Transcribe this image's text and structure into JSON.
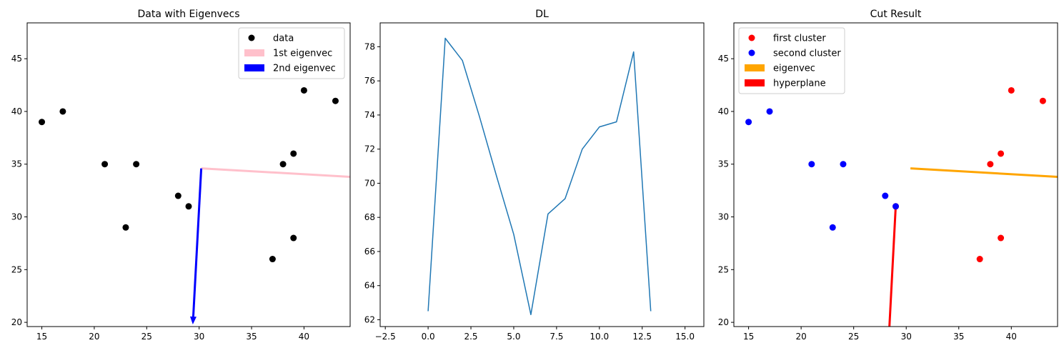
{
  "chart_data": [
    {
      "type": "scatter",
      "title": "Data with Eigenvecs",
      "xlabel": "",
      "ylabel": "",
      "xlim": [
        13.6,
        44.4
      ],
      "ylim": [
        19.6,
        48.4
      ],
      "xticks": [
        15,
        20,
        25,
        30,
        35,
        40
      ],
      "yticks": [
        20,
        25,
        30,
        35,
        40,
        45
      ],
      "grid": false,
      "legend_position": "top-right",
      "series": [
        {
          "name": "data",
          "kind": "points",
          "color": "#000000",
          "x": [
            15,
            17,
            21,
            24,
            23,
            28,
            29,
            37,
            38,
            39,
            39,
            40,
            43
          ],
          "y": [
            39,
            40,
            35,
            35,
            29,
            32,
            31,
            26,
            35,
            36,
            28,
            42,
            41
          ]
        },
        {
          "name": "1st eigenvec",
          "kind": "line",
          "color": "#ffc0cb",
          "x": [
            30.2,
            44.4
          ],
          "y": [
            34.6,
            33.8
          ]
        },
        {
          "name": "2nd eigenvec",
          "kind": "arrow",
          "color": "#0000ff",
          "x": [
            30.2,
            29.4
          ],
          "y": [
            34.6,
            19.8
          ]
        }
      ]
    },
    {
      "type": "line",
      "title": "DL",
      "xlabel": "",
      "ylabel": "",
      "xlim": [
        -2.8,
        16.1
      ],
      "ylim": [
        61.6,
        79.4
      ],
      "xticks": [
        -2.5,
        0.0,
        2.5,
        5.0,
        7.5,
        10.0,
        12.5,
        15.0
      ],
      "xtick_labels": [
        "−2.5",
        "0.0",
        "2.5",
        "5.0",
        "7.5",
        "10.0",
        "12.5",
        "15.0"
      ],
      "yticks": [
        62,
        64,
        66,
        68,
        70,
        72,
        74,
        76,
        78
      ],
      "grid": false,
      "series": [
        {
          "kind": "line",
          "color": "#1f77b4",
          "x": [
            0,
            1,
            2,
            3,
            4,
            5,
            6,
            7,
            8,
            9,
            10,
            11,
            12,
            13
          ],
          "y": [
            62.5,
            78.5,
            77.2,
            73.9,
            70.4,
            67.0,
            62.3,
            68.2,
            69.1,
            72.0,
            73.3,
            73.6,
            77.7,
            62.5
          ]
        }
      ]
    },
    {
      "type": "scatter",
      "title": "Cut Result",
      "xlabel": "",
      "ylabel": "",
      "xlim": [
        13.6,
        44.4
      ],
      "ylim": [
        19.6,
        48.4
      ],
      "xticks": [
        15,
        20,
        25,
        30,
        35,
        40
      ],
      "yticks": [
        20,
        25,
        30,
        35,
        40,
        45
      ],
      "grid": false,
      "legend_position": "top-left",
      "series": [
        {
          "name": "first cluster",
          "kind": "points",
          "color": "#ff0000",
          "x": [
            29,
            37,
            38,
            39,
            39,
            40,
            43
          ],
          "y": [
            31,
            26,
            35,
            36,
            28,
            42,
            41
          ]
        },
        {
          "name": "second cluster",
          "kind": "points",
          "color": "#0000ff",
          "x": [
            15,
            17,
            21,
            24,
            23,
            28,
            29
          ],
          "y": [
            39,
            40,
            35,
            35,
            29,
            32,
            31
          ]
        },
        {
          "name": "eigenvec",
          "kind": "line",
          "color": "#ffa500",
          "x": [
            30.4,
            44.4
          ],
          "y": [
            34.6,
            33.8
          ]
        },
        {
          "name": "hyperplane",
          "kind": "line",
          "color": "#ff0000",
          "x": [
            29.0,
            28.4
          ],
          "y": [
            31.0,
            19.6
          ]
        }
      ]
    }
  ]
}
